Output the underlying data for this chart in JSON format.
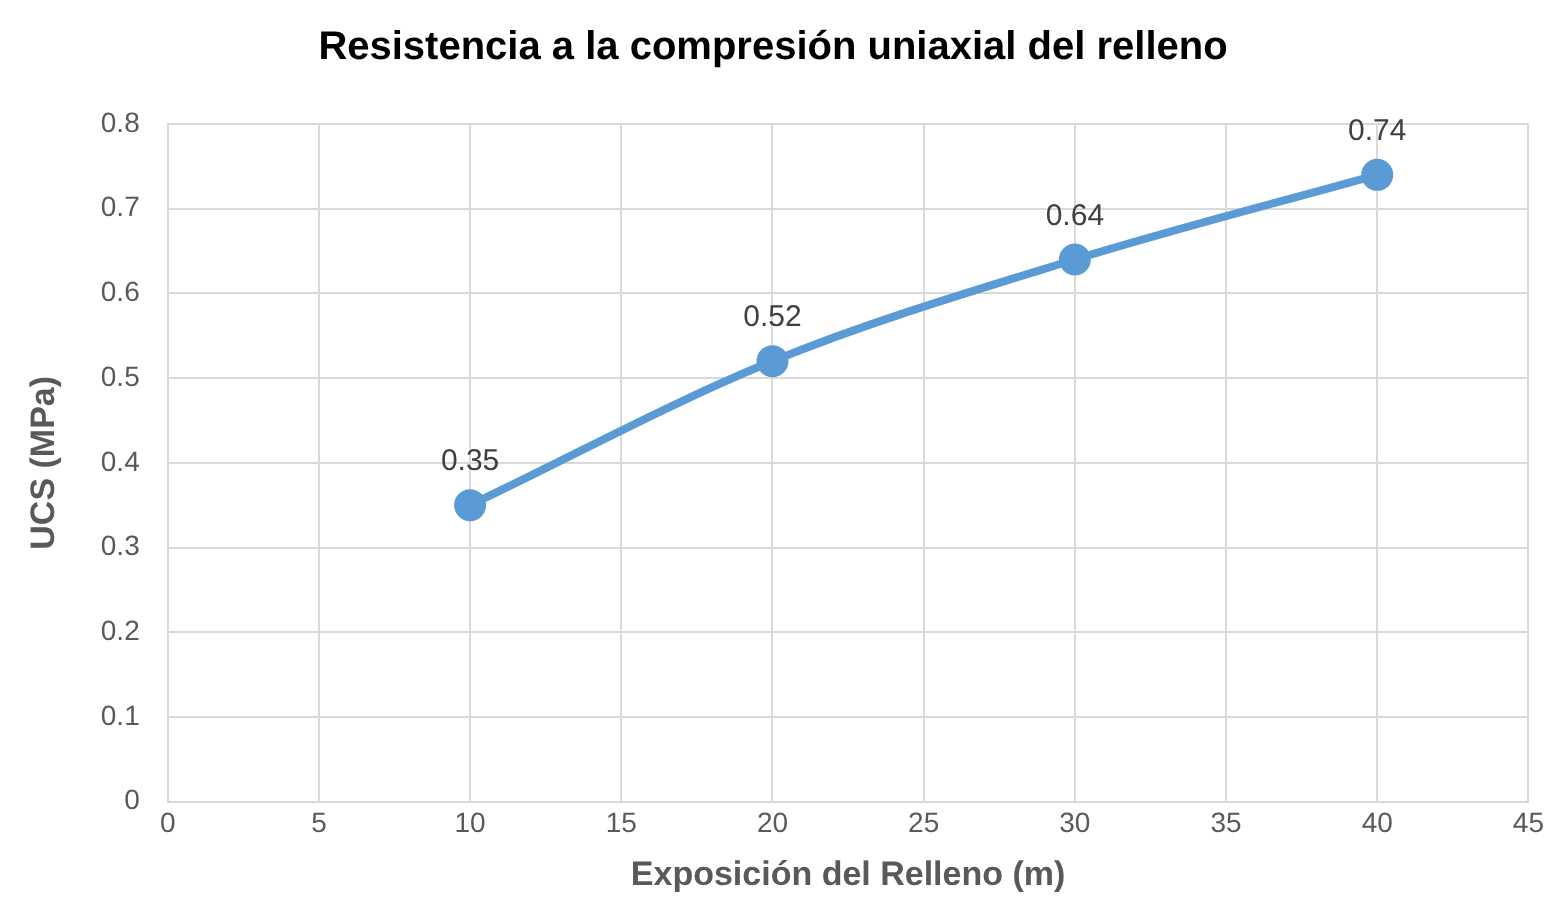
{
  "chart_data": {
    "type": "line",
    "title": "Resistencia a la compresión uniaxial del relleno",
    "xlabel": "Exposición del Relleno (m)",
    "ylabel": "UCS (MPa)",
    "x": [
      10,
      20,
      30,
      40
    ],
    "series": [
      {
        "color": "#5b9bd5",
        "values": [
          0.35,
          0.52,
          0.64,
          0.74
        ]
      }
    ],
    "xlim": [
      0,
      45
    ],
    "xticks": [
      0,
      5,
      10,
      15,
      20,
      25,
      30,
      35,
      40,
      45
    ],
    "ylim": [
      0,
      0.8
    ],
    "yticks": [
      0,
      0.1,
      0.2,
      0.3,
      0.4,
      0.5,
      0.6,
      0.7,
      0.8
    ],
    "grid": true,
    "legend": false,
    "marker": "circle",
    "line_style": "solid",
    "data_labels": true
  }
}
